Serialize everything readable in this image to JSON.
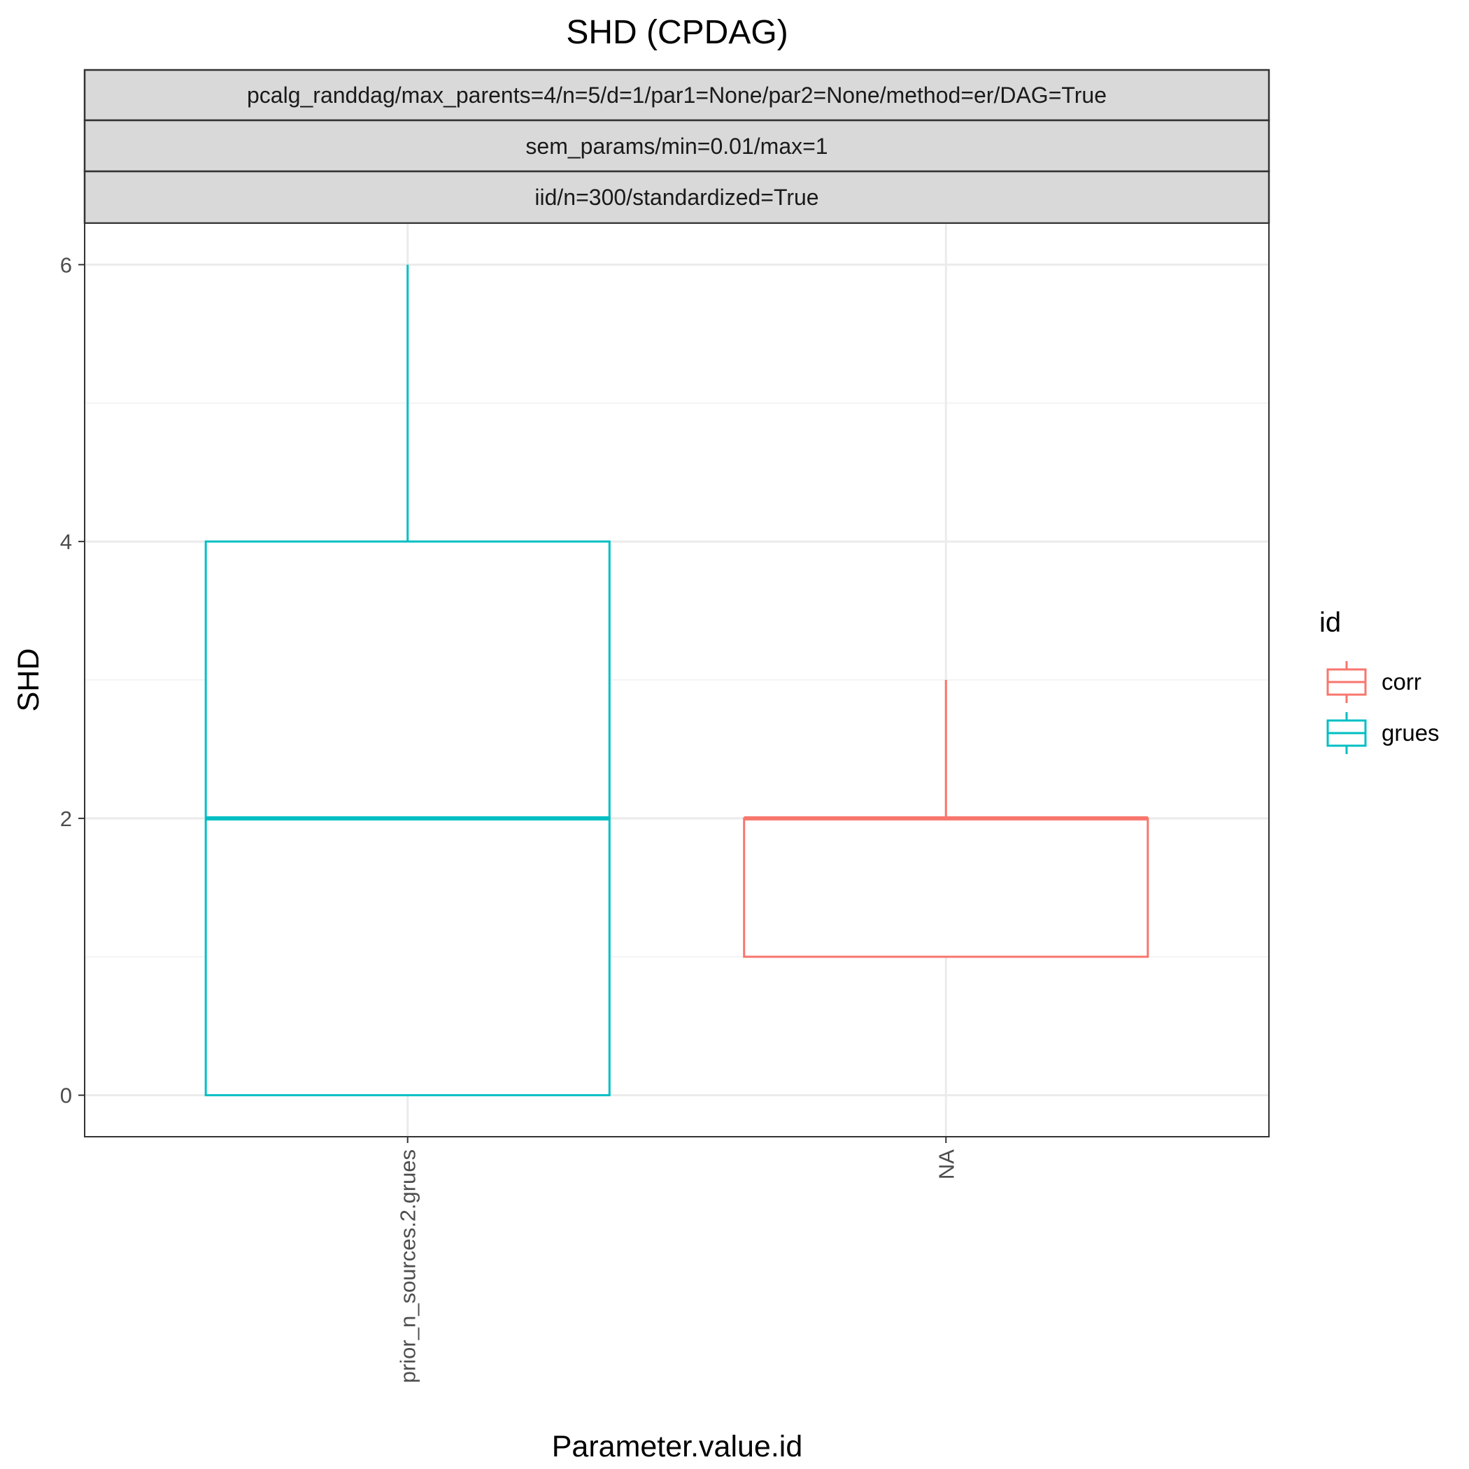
{
  "chart_data": {
    "type": "boxplot",
    "title": "SHD (CPDAG)",
    "xlabel": "Parameter.value.id",
    "ylabel": "SHD",
    "ylim": [
      -0.3,
      6.3
    ],
    "yticks": [
      0,
      2,
      4,
      6
    ],
    "grid": true,
    "facet_strips": [
      "pcalg_randdag/max_parents=4/n=5/d=1/par1=None/par2=None/method=er/DAG=True",
      "sem_params/min=0.01/max=1",
      "iid/n=300/standardized=True"
    ],
    "categories": [
      "prior_n_sources.2.grues",
      "NA"
    ],
    "legend": {
      "title": "id",
      "position": "right",
      "entries": [
        {
          "name": "corr",
          "color": "#F8766D"
        },
        {
          "name": "grues",
          "color": "#00BFC4"
        }
      ]
    },
    "boxes": [
      {
        "category": "prior_n_sources.2.grues",
        "group": "grues",
        "color": "#00BFC4",
        "min": 0,
        "q1": 0,
        "median": 2,
        "q3": 4,
        "max": 6
      },
      {
        "category": "NA",
        "group": "corr",
        "color": "#F8766D",
        "min": 1,
        "q1": 1,
        "median": 2,
        "q3": 2,
        "max": 3
      }
    ]
  }
}
